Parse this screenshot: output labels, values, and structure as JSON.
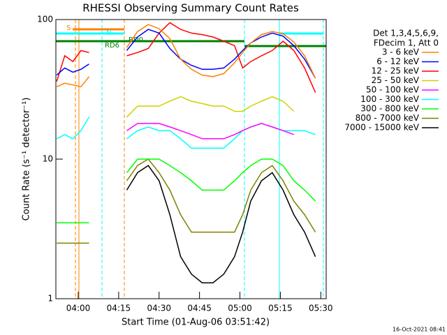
{
  "chart_data": {
    "type": "line",
    "title": "RHESSI Observing Summary Count Rates",
    "x_label": "Start Time (01-Aug-06 03:51:42)",
    "y_label": "Count Rate (s⁻¹ detector⁻¹)",
    "legend_header": [
      "Det 1,3,4,5,6,9,",
      "FDecim 1, Att 0"
    ],
    "footer": "16-Oct-2021 08:41",
    "flags": [
      "S",
      "N",
      "RD6",
      "RD0"
    ],
    "ylog": true,
    "ylim": [
      1,
      100
    ],
    "yticks": [
      1,
      10,
      100
    ],
    "xlim": [
      "03:51:42",
      "05:32:00"
    ],
    "xticks": [
      "04:00",
      "04:15",
      "04:30",
      "04:45",
      "05:00",
      "05:15",
      "05:30"
    ],
    "x": [
      "03:52",
      "03:55",
      "03:58",
      "04:01",
      "04:04",
      "04:10",
      "04:18",
      "04:22",
      "04:26",
      "04:30",
      "04:34",
      "04:38",
      "04:42",
      "04:46",
      "04:50",
      "04:54",
      "04:58",
      "05:01",
      "05:04",
      "05:08",
      "05:12",
      "05:16",
      "05:20",
      "05:24",
      "05:28"
    ],
    "series": [
      {
        "name": "3 - 6 keV",
        "color": "#ff8000",
        "values": [
          33,
          35,
          34,
          33,
          39,
          null,
          63,
          82,
          92,
          86,
          73,
          52,
          44,
          40,
          39,
          41,
          49,
          58,
          68,
          78,
          82,
          79,
          69,
          55,
          38
        ]
      },
      {
        "name": "6 - 12 keV",
        "color": "#0000ff",
        "values": [
          40,
          45,
          42,
          44,
          48,
          null,
          60,
          75,
          85,
          80,
          62,
          52,
          47,
          44,
          44,
          45,
          52,
          60,
          68,
          75,
          80,
          76,
          65,
          52,
          38
        ]
      },
      {
        "name": "12 - 25 keV",
        "color": "#ff0000",
        "values": [
          36,
          55,
          50,
          60,
          58,
          null,
          55,
          58,
          62,
          80,
          95,
          85,
          80,
          78,
          75,
          70,
          65,
          45,
          50,
          55,
          60,
          70,
          60,
          45,
          30
        ]
      },
      {
        "name": "25 - 50 keV",
        "color": "#d0d000",
        "values": [
          null,
          null,
          null,
          null,
          null,
          null,
          20,
          24,
          24,
          24,
          26,
          28,
          26,
          25,
          24,
          24,
          22,
          22,
          24,
          26,
          28,
          26,
          22,
          null,
          null
        ]
      },
      {
        "name": "50 - 100 keV",
        "color": "#ff00ff",
        "values": [
          null,
          null,
          null,
          null,
          null,
          null,
          16,
          18,
          18,
          18,
          17,
          16,
          15,
          14,
          14,
          14,
          15,
          16,
          17,
          18,
          17,
          16,
          15,
          null,
          null
        ]
      },
      {
        "name": "100 - 300 keV",
        "color": "#00ffff",
        "values": [
          14,
          15,
          14,
          16,
          20,
          null,
          14,
          16,
          17,
          16,
          16,
          14,
          12,
          12,
          12,
          12,
          14,
          16,
          17,
          18,
          17,
          16,
          16,
          16,
          15
        ]
      },
      {
        "name": "300 - 800 keV",
        "color": "#00ff00",
        "values": [
          3.5,
          3.5,
          3.5,
          3.5,
          3.5,
          null,
          8,
          10,
          10,
          10,
          9,
          8,
          7,
          6,
          6,
          6,
          7,
          8,
          9,
          10,
          10,
          9,
          7,
          6,
          5
        ]
      },
      {
        "name": "800 - 7000 keV",
        "color": "#808000",
        "values": [
          2.5,
          2.5,
          2.5,
          2.5,
          2.5,
          null,
          7,
          9,
          10,
          8,
          6,
          4,
          3,
          3,
          3,
          3,
          3,
          4,
          6,
          8,
          9,
          7,
          5,
          4,
          3
        ]
      },
      {
        "name": "7000 - 15000 keV",
        "color": "#000000",
        "values": [
          null,
          null,
          null,
          null,
          null,
          null,
          6,
          8,
          9,
          7,
          4,
          2,
          1.5,
          1.3,
          1.3,
          1.5,
          2,
          3,
          5,
          7,
          8,
          6,
          4,
          3,
          2
        ]
      }
    ]
  }
}
